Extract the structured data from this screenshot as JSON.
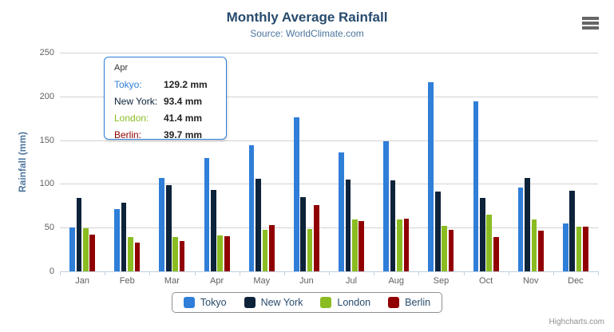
{
  "header": {
    "title": "Monthly Average Rainfall",
    "subtitle": "Source: WorldClimate.com"
  },
  "tooltip": {
    "header": "Apr",
    "suffix": " mm",
    "rows": [
      {
        "series": "Tokyo",
        "value": "129.2"
      },
      {
        "series": "New York",
        "value": "93.4"
      },
      {
        "series": "London",
        "value": "41.4"
      },
      {
        "series": "Berlin",
        "value": "39.7"
      }
    ]
  },
  "credits": {
    "label": "Highcharts.com"
  },
  "export_menu": {
    "icon": "hamburger-icon"
  },
  "colors": {
    "title": "#274b6d",
    "subtitle": "#4d759e",
    "axis_labels": "#606060",
    "gridline": "#d2d2d2",
    "axis_line": "#c0d0e0",
    "tooltip_border": "#2f7ed8",
    "legend_border": "#909090"
  },
  "chart_data": {
    "type": "bar",
    "title": "Monthly Average Rainfall",
    "subtitle": "Source: WorldClimate.com",
    "categories": [
      "Jan",
      "Feb",
      "Mar",
      "Apr",
      "May",
      "Jun",
      "Jul",
      "Aug",
      "Sep",
      "Oct",
      "Nov",
      "Dec"
    ],
    "series": [
      {
        "name": "Tokyo",
        "color": "#2f7ed8",
        "values": [
          49.9,
          71.5,
          106.4,
          129.2,
          144.0,
          176.0,
          135.6,
          148.5,
          216.4,
          194.1,
          95.6,
          54.4
        ]
      },
      {
        "name": "New York",
        "color": "#0d233a",
        "values": [
          83.6,
          78.8,
          98.5,
          93.4,
          106.0,
          84.5,
          105.0,
          104.3,
          91.2,
          83.5,
          106.6,
          92.3
        ]
      },
      {
        "name": "London",
        "color": "#8bbc21",
        "values": [
          48.9,
          38.8,
          39.3,
          41.4,
          47.0,
          48.3,
          59.0,
          59.6,
          52.4,
          65.2,
          59.3,
          51.2
        ]
      },
      {
        "name": "Berlin",
        "color": "#910000",
        "values": [
          42.4,
          33.2,
          34.5,
          39.7,
          52.6,
          75.5,
          57.4,
          60.4,
          47.6,
          39.1,
          46.8,
          51.1
        ]
      }
    ],
    "xlabel": "",
    "ylabel": "Rainfall (mm)",
    "ylim": [
      0,
      250
    ],
    "yticks": [
      0,
      50,
      100,
      150,
      200,
      250
    ],
    "grid": true,
    "legend_position": "bottom"
  }
}
